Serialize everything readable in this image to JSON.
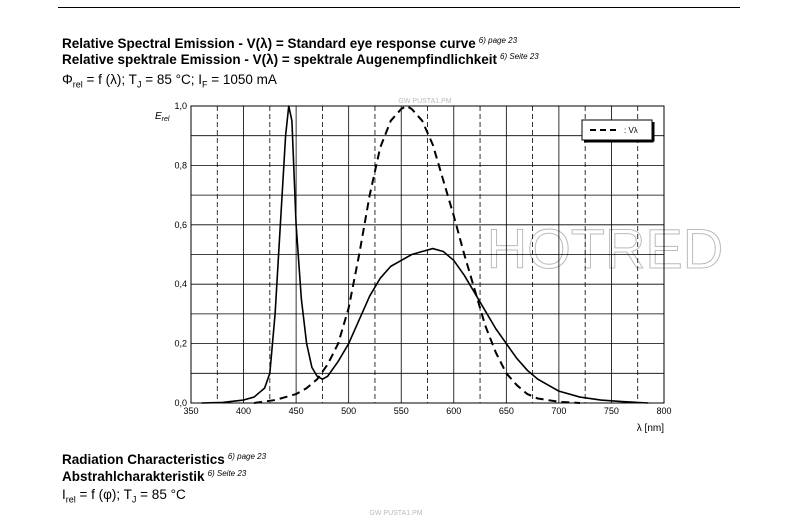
{
  "header": {
    "title": "Relative Spectral Emission - V(λ) = Standard eye response curve",
    "title_note": "6) page 23",
    "subtitle": "Relative spektrale Emission - V(λ) = spektrale Augenempfindlichkeit",
    "subtitle_note": "6) Seite 23",
    "formula": [
      "Φ",
      "rel",
      " = f (λ); T",
      "J",
      " = 85 °C; I",
      "F",
      " = 1050 mA"
    ]
  },
  "chart_data": {
    "type": "line",
    "ylabel": [
      "E",
      "rel"
    ],
    "xlabel": "λ [nm]",
    "xlim": [
      350,
      800
    ],
    "ylim": [
      0,
      1
    ],
    "xticks": [
      350,
      400,
      450,
      500,
      550,
      600,
      650,
      700,
      750,
      800
    ],
    "xminorticks": [
      375,
      425,
      475,
      525,
      575,
      625,
      675,
      725,
      775
    ],
    "yticks": [
      {
        "value": 0,
        "label": "0,0"
      },
      {
        "value": 0.2,
        "label": "0,2"
      },
      {
        "value": 0.4,
        "label": "0,4"
      },
      {
        "value": 0.6,
        "label": "0,6"
      },
      {
        "value": 0.8,
        "label": "0,8"
      },
      {
        "value": 1,
        "label": "1,0"
      }
    ],
    "yminorticks": [
      0.1,
      0.3,
      0.5,
      0.7,
      0.9
    ],
    "grid": true,
    "legend": "upper right",
    "series": [
      {
        "color": "#000000",
        "dash": false,
        "x": [
          360,
          380,
          400,
          410,
          420,
          425,
          430,
          435,
          440,
          443,
          446,
          450,
          455,
          460,
          465,
          470,
          475,
          480,
          490,
          500,
          510,
          520,
          530,
          540,
          550,
          560,
          570,
          580,
          590,
          600,
          610,
          620,
          630,
          640,
          650,
          660,
          670,
          680,
          690,
          700,
          720,
          740,
          760,
          785
        ],
        "values": [
          0,
          0.002,
          0.01,
          0.02,
          0.05,
          0.1,
          0.3,
          0.6,
          0.9,
          1.0,
          0.95,
          0.6,
          0.35,
          0.2,
          0.12,
          0.09,
          0.08,
          0.09,
          0.14,
          0.2,
          0.28,
          0.36,
          0.42,
          0.46,
          0.48,
          0.5,
          0.51,
          0.52,
          0.51,
          0.48,
          0.43,
          0.37,
          0.31,
          0.25,
          0.2,
          0.15,
          0.11,
          0.08,
          0.06,
          0.04,
          0.02,
          0.01,
          0.005,
          0
        ]
      },
      {
        "name": ": Vλ",
        "color": "#000000",
        "dash": true,
        "x": [
          410,
          430,
          450,
          460,
          470,
          480,
          490,
          500,
          510,
          520,
          530,
          540,
          550,
          555,
          560,
          570,
          580,
          590,
          600,
          610,
          620,
          630,
          640,
          650,
          660,
          670,
          680,
          700,
          720
        ],
        "values": [
          0,
          0.01,
          0.03,
          0.05,
          0.08,
          0.13,
          0.2,
          0.32,
          0.5,
          0.7,
          0.86,
          0.95,
          0.99,
          1.0,
          0.99,
          0.95,
          0.87,
          0.75,
          0.63,
          0.5,
          0.38,
          0.26,
          0.17,
          0.1,
          0.06,
          0.03,
          0.015,
          0.004,
          0
        ]
      }
    ]
  },
  "section": {
    "title": "Radiation Characteristics",
    "title_note": "6) page 23",
    "subtitle": "Abstrahlcharakteristik",
    "subtitle_note": "6) Seite 23",
    "formula": [
      "I",
      "rel",
      " = f (φ); T",
      "J",
      " = 85 °C"
    ]
  },
  "watermarks": [
    "GW PUSTA1.PM",
    "HOTRED",
    "GW PUSTA1.PM"
  ]
}
